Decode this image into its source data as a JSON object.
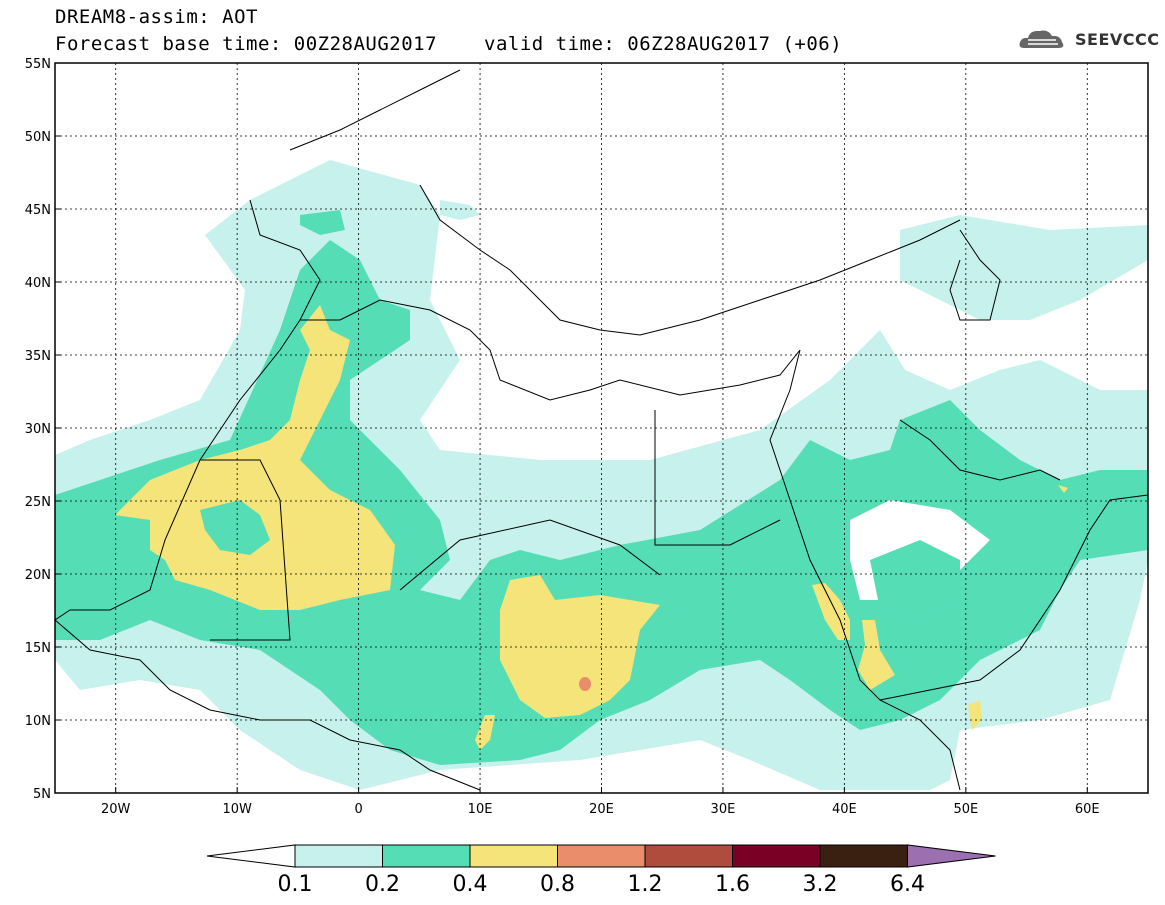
{
  "title": {
    "line1": "DREAM8-assim: AOT",
    "line2": "Forecast base time: 00Z28AUG2017",
    "line3": "valid time: 06Z28AUG2017 (+06)"
  },
  "logo": {
    "text": "SEEVCCC",
    "icon": "cloud-logo-icon"
  },
  "map": {
    "lat_labels": [
      "55N",
      "50N",
      "45N",
      "40N",
      "35N",
      "30N",
      "25N",
      "20N",
      "15N",
      "10N",
      "5N"
    ],
    "lon_labels": [
      "20W",
      "10W",
      "0",
      "10E",
      "20E",
      "30E",
      "40E",
      "50E",
      "60E"
    ],
    "lat_range": [
      5,
      55
    ],
    "lon_range": [
      -25,
      65
    ],
    "grid": true
  },
  "legend": {
    "labels": [
      "0.1",
      "0.2",
      "0.4",
      "0.8",
      "1.2",
      "1.6",
      "3.2",
      "6.4"
    ],
    "colors": [
      "#ffffff",
      "#c7f1ec",
      "#55ddb6",
      "#f5e47a",
      "#e98d6a",
      "#b04c3d",
      "#7a0026",
      "#3a2010",
      "#9b6fb0"
    ]
  },
  "colors": {
    "level1": "#c7f1ec",
    "level2": "#55ddb6",
    "level3": "#f5e47a",
    "level4": "#e98d6a"
  }
}
